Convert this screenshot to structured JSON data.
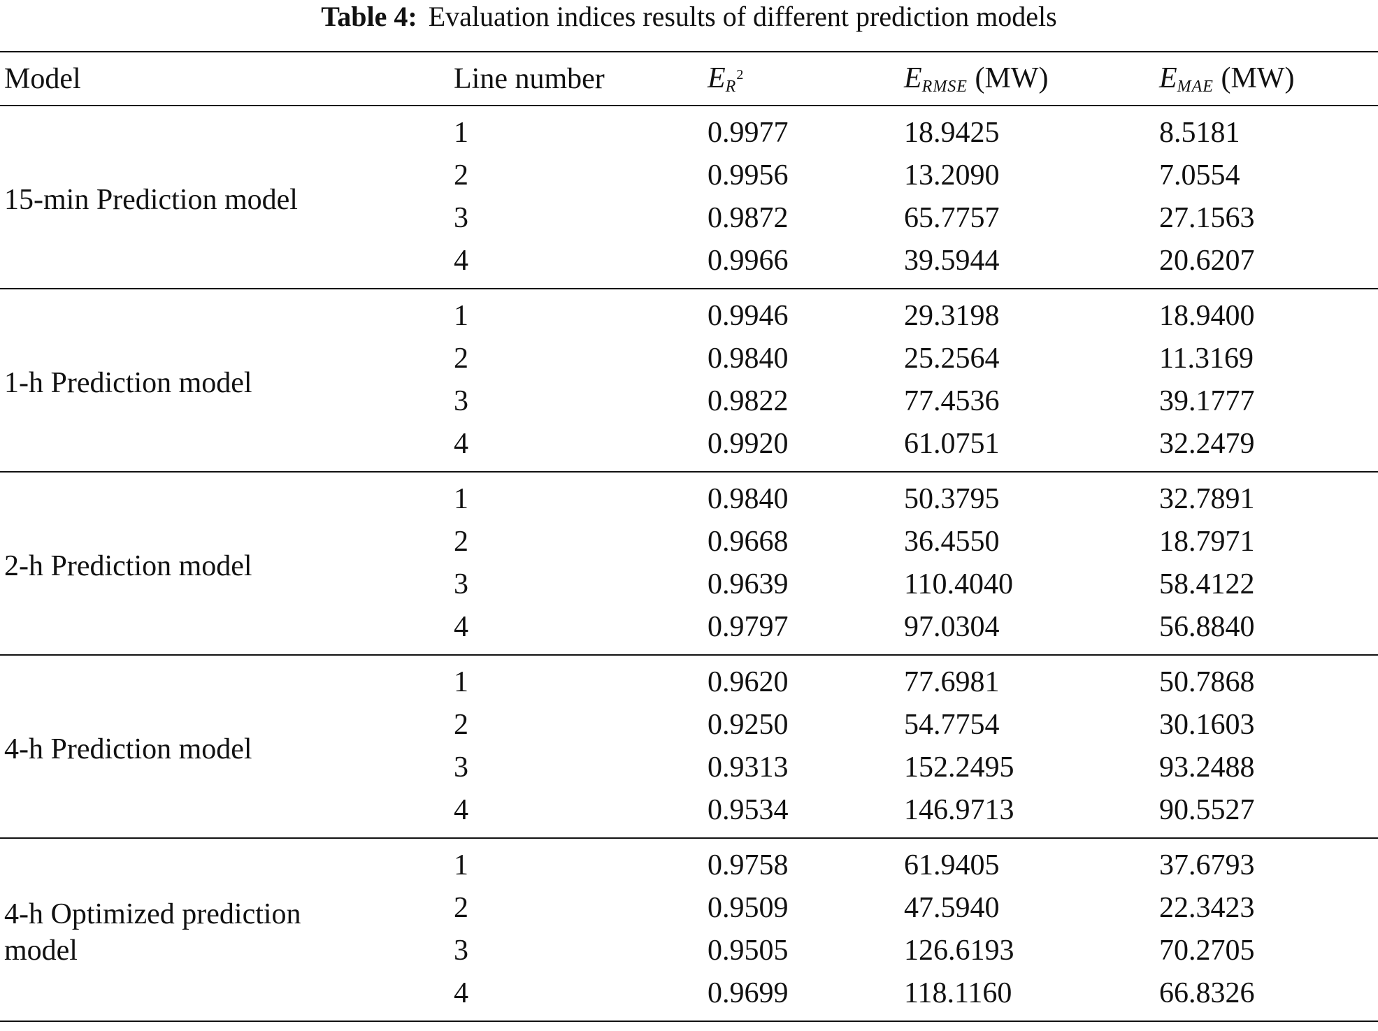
{
  "caption": {
    "label": "Table 4:",
    "text": "Evaluation indices results of different prediction models"
  },
  "header": {
    "model": "Model",
    "line_number": "Line number",
    "r2": {
      "symbol": "E",
      "sub": "R",
      "sup": "2"
    },
    "rmse": {
      "symbol": "E",
      "sub": "RMSE",
      "unit": "(MW)"
    },
    "mae": {
      "symbol": "E",
      "sub": "MAE",
      "unit": "(MW)"
    }
  },
  "groups": [
    {
      "model": "15-min Prediction model",
      "rows": [
        {
          "line": "1",
          "r2": "0.9977",
          "rmse": "18.9425",
          "mae": "8.5181"
        },
        {
          "line": "2",
          "r2": "0.9956",
          "rmse": "13.2090",
          "mae": "7.0554"
        },
        {
          "line": "3",
          "r2": "0.9872",
          "rmse": "65.7757",
          "mae": "27.1563"
        },
        {
          "line": "4",
          "r2": "0.9966",
          "rmse": "39.5944",
          "mae": "20.6207"
        }
      ]
    },
    {
      "model": "1-h Prediction model",
      "rows": [
        {
          "line": "1",
          "r2": "0.9946",
          "rmse": "29.3198",
          "mae": "18.9400"
        },
        {
          "line": "2",
          "r2": "0.9840",
          "rmse": "25.2564",
          "mae": "11.3169"
        },
        {
          "line": "3",
          "r2": "0.9822",
          "rmse": "77.4536",
          "mae": "39.1777"
        },
        {
          "line": "4",
          "r2": "0.9920",
          "rmse": "61.0751",
          "mae": "32.2479"
        }
      ]
    },
    {
      "model": "2-h Prediction model",
      "rows": [
        {
          "line": "1",
          "r2": "0.9840",
          "rmse": "50.3795",
          "mae": "32.7891"
        },
        {
          "line": "2",
          "r2": "0.9668",
          "rmse": "36.4550",
          "mae": "18.7971"
        },
        {
          "line": "3",
          "r2": "0.9639",
          "rmse": "110.4040",
          "mae": "58.4122"
        },
        {
          "line": "4",
          "r2": "0.9797",
          "rmse": "97.0304",
          "mae": "56.8840"
        }
      ]
    },
    {
      "model": "4-h Prediction model",
      "rows": [
        {
          "line": "1",
          "r2": "0.9620",
          "rmse": "77.6981",
          "mae": "50.7868"
        },
        {
          "line": "2",
          "r2": "0.9250",
          "rmse": "54.7754",
          "mae": "30.1603"
        },
        {
          "line": "3",
          "r2": "0.9313",
          "rmse": "152.2495",
          "mae": "93.2488"
        },
        {
          "line": "4",
          "r2": "0.9534",
          "rmse": "146.9713",
          "mae": "90.5527"
        }
      ]
    },
    {
      "model": "4-h Optimized prediction model",
      "rows": [
        {
          "line": "1",
          "r2": "0.9758",
          "rmse": "61.9405",
          "mae": "37.6793"
        },
        {
          "line": "2",
          "r2": "0.9509",
          "rmse": "47.5940",
          "mae": "22.3423"
        },
        {
          "line": "3",
          "r2": "0.9505",
          "rmse": "126.6193",
          "mae": "70.2705"
        },
        {
          "line": "4",
          "r2": "0.9699",
          "rmse": "118.1160",
          "mae": "66.8326"
        }
      ]
    }
  ]
}
